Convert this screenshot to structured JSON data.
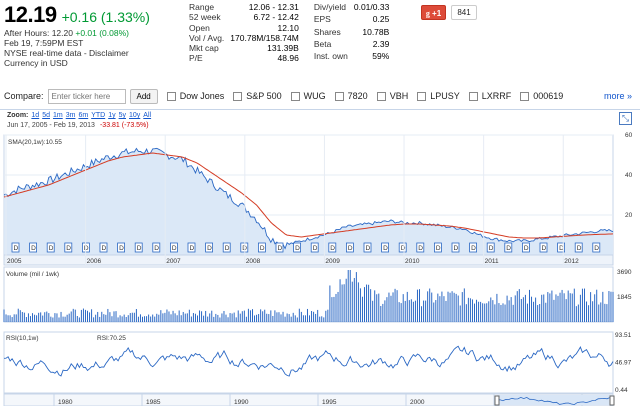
{
  "quote": {
    "price": "12.19",
    "change": "+0.16 (1.33%)",
    "after_hours_label": "After Hours: 12.20",
    "after_hours_change": "+0.01 (0.08%)",
    "timestamp": "Feb 19, 7:59PM EST",
    "disclaimer": "NYSE real-time data - Disclaimer",
    "currency": "Currency in USD",
    "price_color": "#000000",
    "change_color": "#009933"
  },
  "stats": {
    "col1": [
      {
        "label": "Range",
        "value": "12.06 - 12.31"
      },
      {
        "label": "52 week",
        "value": "6.72 - 12.42"
      },
      {
        "label": "Open",
        "value": "12.10"
      },
      {
        "label": "Vol / Avg.",
        "value": "170.78M/158.74M"
      },
      {
        "label": "Mkt cap",
        "value": "131.39B"
      },
      {
        "label": "P/E",
        "value": "48.96"
      }
    ],
    "col2": [
      {
        "label": "Div/yield",
        "value": "0.01/0.33"
      },
      {
        "label": "EPS",
        "value": "0.25"
      },
      {
        "label": "Shares",
        "value": "10.78B"
      },
      {
        "label": "Beta",
        "value": "2.39"
      },
      {
        "label": "Inst. own",
        "value": "59%"
      }
    ]
  },
  "social": {
    "gplus_label": "+1",
    "gplus_count": "841",
    "gplus_color": "#dd4b39"
  },
  "compare": {
    "label": "Compare:",
    "input_placeholder": "Enter ticker here",
    "add_label": "Add",
    "options": [
      "Dow Jones",
      "S&P 500",
      "WUG",
      "7820",
      "VBH",
      "LPUSY",
      "LXRRF",
      "000619"
    ],
    "more_label": "more »"
  },
  "chart_header": {
    "zoom_label": "Zoom:",
    "zoom_options": [
      "1d",
      "5d",
      "1m",
      "3m",
      "6m",
      "YTD",
      "1y",
      "5y",
      "10y",
      "All"
    ],
    "range": "Jun 17, 2005 - Feb 19, 2013",
    "range_change": "-33.81 (-73.5%)"
  },
  "chart_data": [
    {
      "type": "area",
      "title": "",
      "series": [
        {
          "name": "",
          "values": [
            30,
            33,
            35,
            37,
            40,
            43,
            46,
            49,
            51,
            52,
            52,
            50,
            48,
            42,
            36,
            30,
            25,
            18,
            8,
            5,
            7,
            9,
            11,
            14,
            15,
            16,
            17,
            16,
            16,
            15,
            14,
            13,
            10,
            8,
            7,
            7,
            8,
            9,
            10,
            11,
            12,
            12.2
          ]
        },
        {
          "name": "SMA(20,1w):10.55",
          "values": [
            29,
            31,
            33,
            35,
            38,
            41,
            44,
            47,
            49,
            50,
            51,
            50,
            49,
            46,
            41,
            36,
            31,
            25,
            16,
            10,
            9,
            10,
            11,
            12,
            13,
            14,
            15,
            15.5,
            15.5,
            15,
            14.5,
            13.5,
            12,
            10.5,
            9,
            8.5,
            8.5,
            9,
            9.5,
            10,
            10.3,
            10.55
          ]
        }
      ],
      "x_tick_labels": [
        "2005",
        "2006",
        "2007",
        "2008",
        "2009",
        "2010",
        "2011",
        "2012"
      ],
      "y_tick_labels": [
        "20",
        "40",
        "60"
      ],
      "ylim": [
        0,
        60
      ],
      "flags_label": "D",
      "colors": {
        "price": "#2b68c4",
        "fill": "#dbe8f7",
        "sma": "#d43c24"
      }
    },
    {
      "type": "bar",
      "title": "Volume (mil / 1wk)",
      "y_tick_labels": [
        "1845",
        "3690"
      ],
      "ylim": [
        0,
        3690
      ],
      "color": "#2b68c4"
    },
    {
      "type": "line",
      "title": "RSI(10,1w)",
      "current_label": "RSI:70.25",
      "y_tick_labels": [
        "93.51",
        "46.97",
        "0.44"
      ],
      "ylim": [
        0.44,
        93.51
      ],
      "color": "#2b68c4"
    },
    {
      "type": "area",
      "title": "navigator",
      "x_tick_labels": [
        "1980",
        "1985",
        "1990",
        "1995",
        "2000",
        "2005",
        "2010"
      ],
      "color": "#2b68c4"
    }
  ]
}
